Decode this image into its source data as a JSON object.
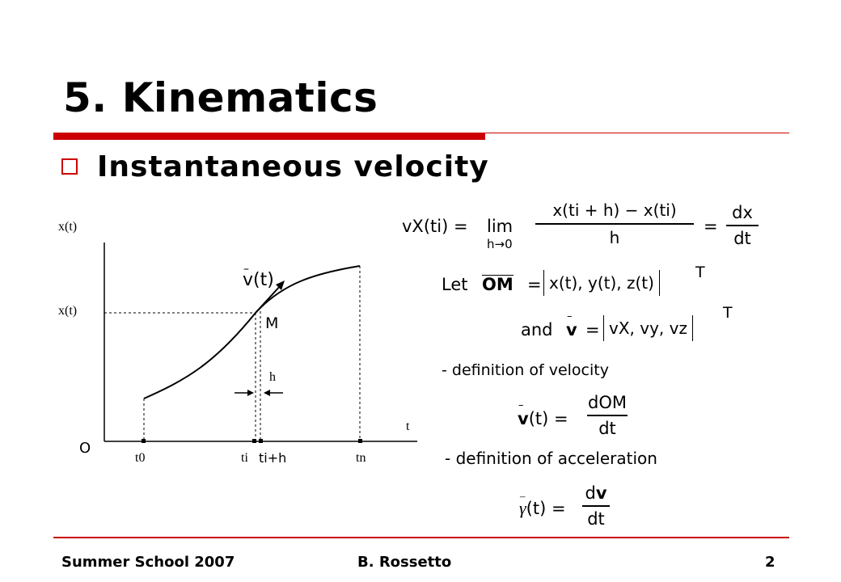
{
  "slide": {
    "title": "5. Kinematics",
    "subtitle": "Instantaneous velocity",
    "accent_color": "#cc0000"
  },
  "graph": {
    "y_axis_label_top": "x(t)",
    "y_axis_label_mid": "x(t)",
    "origin_label": "O",
    "t_axis_label": "t",
    "point_label": "M",
    "velocity_label": "v(t)",
    "h_label": "h",
    "tick_t0": "t0",
    "tick_ti": "ti",
    "tick_tih": "ti+h",
    "tick_tn": "tn"
  },
  "equations": {
    "eq1": {
      "lhs": "vX(ti) =",
      "lim": "lim",
      "lim_under": "h→0",
      "num": "x(ti + h) − x(ti)",
      "den": "h",
      "eq": "=",
      "rnum": "dx",
      "rden": "dt"
    },
    "eq2": {
      "let": "Let",
      "om": "OM",
      "eq": "=",
      "bracket_content": "x(t), y(t), z(t)",
      "transpose": "T"
    },
    "eq3": {
      "and": "and",
      "v": "v",
      "eq": "=",
      "bracket_content": "vX, vy, vz",
      "transpose": "T"
    },
    "def_velocity": "- definition of velocity",
    "eq4": {
      "lhs": "v(t) =",
      "num": "dOM",
      "den": "dt"
    },
    "def_acceleration": "- definition of acceleration",
    "eq5": {
      "lhs": "γ(t) =",
      "num": "dv",
      "den": "dt"
    }
  },
  "footer": {
    "left": "Summer School 2007",
    "center": "B. Rossetto",
    "page": "2"
  }
}
